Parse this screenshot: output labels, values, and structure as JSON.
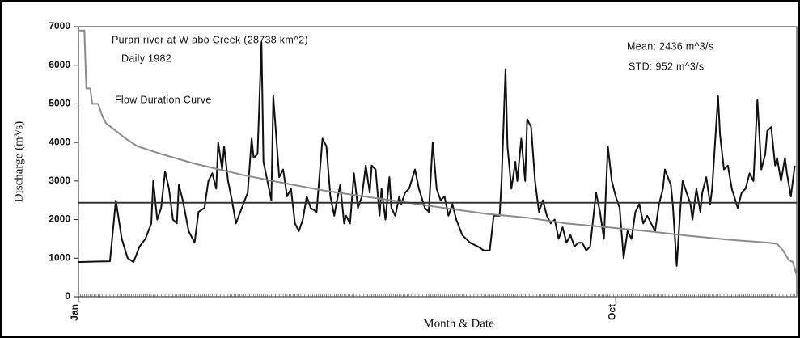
{
  "chart_data": {
    "type": "line",
    "ylabel": "Discharge (m³/s)",
    "xlabel": "Month & Date",
    "annotations": [
      "Purari river at W abo Creek (28738 km^2)",
      "Daily 1982",
      "Flow Duration Curve",
      "Mean: 2436 m^3/s",
      "STD: 952 m^3/s"
    ],
    "xlim": [
      1,
      366
    ],
    "xticks": [
      {
        "value": 1,
        "label": "Jan"
      },
      {
        "value": 274,
        "label": "Oct"
      }
    ],
    "ylim": [
      0,
      7000
    ],
    "yticks": [
      0,
      1000,
      2000,
      3000,
      4000,
      5000,
      6000,
      7000
    ],
    "series": [
      {
        "color": "#111111",
        "x": [
          1,
          2,
          17,
          20,
          23,
          26,
          29,
          32,
          35,
          38,
          39,
          41,
          43,
          45,
          47,
          49,
          51,
          52,
          54,
          57,
          60,
          62,
          65,
          67,
          69,
          71,
          72,
          74,
          75,
          77,
          79,
          81,
          84,
          87,
          89,
          90,
          92,
          94,
          95,
          97,
          99,
          100,
          102,
          103,
          105,
          107,
          109,
          111,
          113,
          115,
          117,
          119,
          122,
          125,
          127,
          129,
          131,
          132,
          134,
          136,
          137,
          139,
          141,
          143,
          145,
          147,
          149,
          150,
          152,
          154,
          155,
          157,
          159,
          160,
          162,
          164,
          165,
          167,
          169,
          172,
          174,
          177,
          179,
          181,
          183,
          185,
          187,
          189,
          191,
          193,
          196,
          200,
          204,
          207,
          210,
          212,
          215,
          216,
          218,
          219,
          221,
          223,
          224,
          226,
          228,
          229,
          231,
          233,
          235,
          237,
          239,
          241,
          243,
          245,
          247,
          249,
          251,
          253,
          255,
          257,
          259,
          261,
          264,
          266,
          268,
          270,
          272,
          274,
          276,
          278,
          280,
          282,
          284,
          286,
          288,
          290,
          294,
          296,
          298,
          299,
          302,
          303,
          305,
          307,
          308,
          310,
          312,
          313,
          315,
          317,
          318,
          320,
          322,
          323,
          326,
          327,
          329,
          331,
          333,
          336,
          338,
          340,
          342,
          344,
          346,
          348,
          350,
          351,
          353,
          355,
          356,
          358,
          360,
          361,
          363,
          364,
          365
        ],
        "values": [
          900,
          900,
          920,
          2500,
          1500,
          1000,
          900,
          1300,
          1500,
          1900,
          3000,
          2000,
          2300,
          3250,
          2800,
          2000,
          1900,
          2900,
          2500,
          1700,
          1400,
          2200,
          2300,
          3000,
          3200,
          2800,
          4000,
          3300,
          3900,
          3000,
          2500,
          1900,
          2300,
          2700,
          4100,
          3600,
          3700,
          6600,
          3500,
          3000,
          2500,
          5200,
          3800,
          3100,
          3300,
          2600,
          2800,
          1900,
          1700,
          2000,
          2600,
          2300,
          2200,
          4100,
          3900,
          2600,
          2100,
          2400,
          2900,
          1900,
          2100,
          1900,
          3200,
          2300,
          2600,
          3400,
          2700,
          3400,
          3300,
          2100,
          2800,
          2000,
          3100,
          2300,
          2100,
          2600,
          2400,
          2700,
          2800,
          3300,
          2800,
          2300,
          2200,
          4000,
          2800,
          2500,
          2600,
          2100,
          2400,
          2000,
          1600,
          1400,
          1300,
          1200,
          1200,
          2100,
          2100,
          3000,
          5900,
          3900,
          2800,
          3500,
          3000,
          4100,
          3000,
          4600,
          4400,
          3000,
          2200,
          2500,
          2100,
          1900,
          2000,
          1500,
          1800,
          1400,
          1600,
          1300,
          1400,
          1400,
          1200,
          1300,
          2700,
          2200,
          1500,
          3900,
          3000,
          2600,
          2300,
          1000,
          1700,
          1500,
          2200,
          2400,
          1900,
          2100,
          1700,
          2400,
          2800,
          3300,
          2900,
          2400,
          800,
          2400,
          3000,
          2700,
          2400,
          2000,
          2800,
          2200,
          2700,
          3100,
          2400,
          2800,
          5200,
          4200,
          3300,
          3400,
          2800,
          2300,
          2700,
          2800,
          3200,
          3000,
          5100,
          3300,
          3700,
          4300,
          4400,
          3400,
          3600,
          3000,
          3600,
          3200,
          2600,
          3000,
          3400
        ]
      },
      {
        "color": "#8a8a8a",
        "x": [
          1,
          4,
          5,
          7,
          8,
          11,
          13,
          15,
          20,
          25,
          31,
          43,
          60,
          85,
          105,
          126,
          146,
          167,
          187,
          208,
          229,
          249,
          270,
          290,
          311,
          331,
          352,
          356,
          359,
          362,
          364,
          366
        ],
        "values": [
          6900,
          6900,
          5400,
          5400,
          5000,
          5000,
          4700,
          4500,
          4300,
          4100,
          3900,
          3700,
          3450,
          3150,
          2950,
          2750,
          2600,
          2450,
          2300,
          2150,
          2050,
          1900,
          1800,
          1700,
          1580,
          1480,
          1400,
          1370,
          1200,
          950,
          900,
          550
        ]
      },
      {
        "color": "#333333",
        "x": [
          1,
          366
        ],
        "values": [
          2436,
          2436
        ]
      }
    ]
  }
}
